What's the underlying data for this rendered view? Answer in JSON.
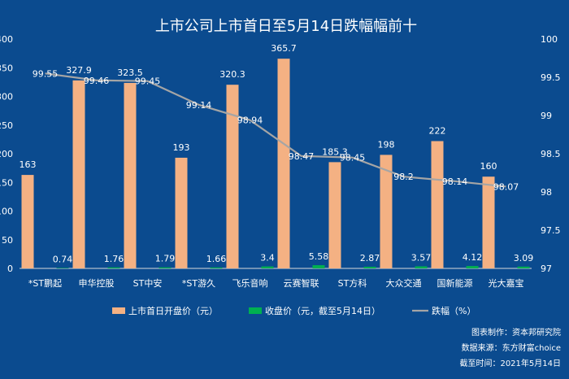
{
  "chart_data": {
    "type": "bar",
    "title": "上市公司上市首日至5月14日跌幅幅前十",
    "categories": [
      "*ST鹏起",
      "申华控股",
      "ST中安",
      "*ST游久",
      "飞乐音响",
      "云赛智联",
      "ST方科",
      "大众交通",
      "国新能源",
      "光大嘉宝"
    ],
    "left_axis": {
      "min": 0,
      "max": 400,
      "ticks": [
        "0",
        "50",
        "100",
        "150",
        "200",
        "250",
        "300",
        "350",
        "400"
      ]
    },
    "right_axis": {
      "min": 97,
      "max": 100,
      "ticks": [
        "97",
        "97.5",
        "98",
        "98.5",
        "99",
        "99.5",
        "100"
      ]
    },
    "series": [
      {
        "name": "上市首日开盘价（元）",
        "kind": "bar",
        "axis": "left",
        "color": "#f4b183",
        "values": [
          163,
          327.9,
          323.5,
          193,
          320.3,
          365.7,
          185.3,
          198,
          222,
          160
        ],
        "labels": [
          "163",
          "327.9",
          "323.5",
          "193",
          "320.3",
          "365.7",
          "185.3",
          "198",
          "222",
          "160"
        ]
      },
      {
        "name": "收盘价（元，截至5月14日）",
        "kind": "bar",
        "axis": "left",
        "color": "#00b050",
        "values": [
          0.74,
          1.76,
          1.79,
          1.66,
          3.4,
          5.58,
          2.87,
          3.57,
          4.12,
          3.09
        ],
        "labels": [
          "0.74",
          "1.76",
          "1.79",
          "1.66",
          "3.4",
          "5.58",
          "2.87",
          "3.57",
          "4.12",
          "3.09"
        ]
      },
      {
        "name": "跌幅（%）",
        "kind": "line",
        "axis": "right",
        "color": "#a5a5a5",
        "values": [
          99.55,
          99.46,
          99.45,
          99.14,
          98.94,
          98.47,
          98.45,
          98.2,
          98.14,
          98.07
        ],
        "labels": [
          "99.55",
          "99.46",
          "99.45",
          "99.14",
          "98.94",
          "98.47",
          "98.45",
          "98.2",
          "98.14",
          "98.07"
        ]
      }
    ],
    "footer": [
      "图表制作：资本邦研究院",
      "数据来源：东方财富choice",
      "截至时间：2021年5月14日"
    ]
  }
}
